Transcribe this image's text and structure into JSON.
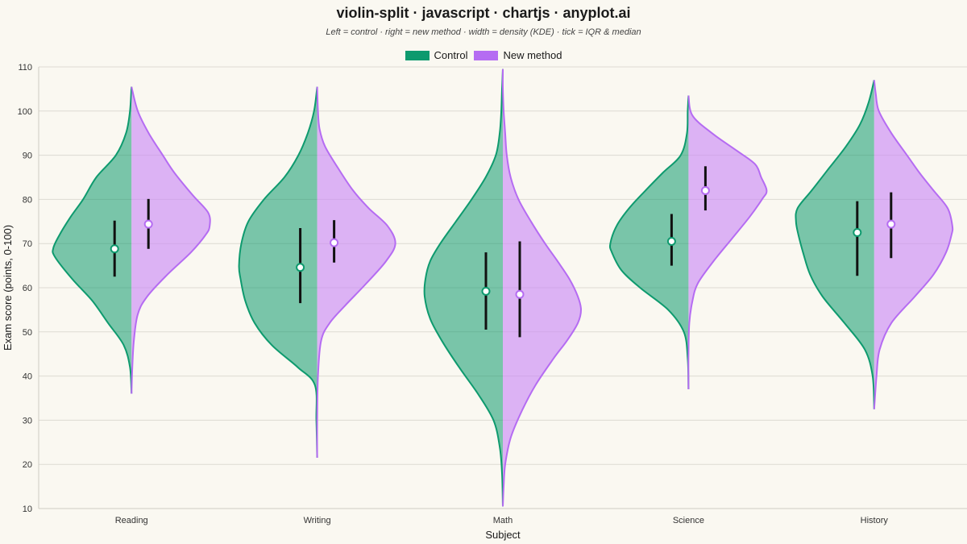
{
  "colors": {
    "control": "#0E9A6E",
    "control_fill": "rgba(14,154,110,0.55)",
    "new_method": "#B56CF2",
    "new_method_fill": "rgba(201,135,246,0.62)",
    "grid": "#DDDAD2",
    "box": "#111111"
  },
  "legend": {
    "control_label": "Control",
    "new_method_label": "New method"
  },
  "chart_data": {
    "type": "violin-split",
    "title": "violin-split · javascript · chartjs · anyplot.ai",
    "subtitle": "Left = control · right = new method · width = density (KDE) · tick = IQR & median",
    "xlabel": "Subject",
    "ylabel": "Exam score (points, 0-100)",
    "ylim": [
      10,
      110
    ],
    "yticks": [
      10,
      20,
      30,
      40,
      50,
      60,
      70,
      80,
      90,
      100,
      110
    ],
    "grid": true,
    "legend_position": "top-center",
    "categories": [
      "Reading",
      "Writing",
      "Math",
      "Science",
      "History"
    ],
    "series": [
      {
        "name": "Control",
        "side": "left",
        "violins": [
          {
            "min": 36,
            "max": 105.5,
            "q1": 62.5,
            "median": 68.8,
            "q3": 75.2,
            "density": [
              [
                36,
                0.0
              ],
              [
                42,
                0.02
              ],
              [
                47,
                0.1
              ],
              [
                52,
                0.3
              ],
              [
                57,
                0.5
              ],
              [
                62,
                0.76
              ],
              [
                67,
                0.98
              ],
              [
                69,
                1.0
              ],
              [
                72,
                0.92
              ],
              [
                76,
                0.78
              ],
              [
                80,
                0.62
              ],
              [
                85,
                0.45
              ],
              [
                90,
                0.2
              ],
              [
                95,
                0.07
              ],
              [
                100,
                0.02
              ],
              [
                105.5,
                0.0
              ]
            ]
          },
          {
            "min": 21.5,
            "max": 105.5,
            "q1": 56.5,
            "median": 64.6,
            "q3": 73.5,
            "density": [
              [
                21.5,
                0.0
              ],
              [
                30,
                0.01
              ],
              [
                38,
                0.03
              ],
              [
                42,
                0.25
              ],
              [
                47,
                0.58
              ],
              [
                52,
                0.8
              ],
              [
                57,
                0.92
              ],
              [
                62,
                0.98
              ],
              [
                65,
                1.0
              ],
              [
                70,
                0.97
              ],
              [
                75,
                0.88
              ],
              [
                80,
                0.68
              ],
              [
                85,
                0.42
              ],
              [
                90,
                0.24
              ],
              [
                95,
                0.12
              ],
              [
                100,
                0.04
              ],
              [
                105.5,
                0.0
              ]
            ]
          },
          {
            "min": 10.5,
            "max": 109.5,
            "q1": 50.5,
            "median": 59.2,
            "q3": 68.0,
            "density": [
              [
                10.5,
                0.0
              ],
              [
                18,
                0.01
              ],
              [
                24,
                0.04
              ],
              [
                30,
                0.12
              ],
              [
                36,
                0.32
              ],
              [
                42,
                0.56
              ],
              [
                48,
                0.78
              ],
              [
                53,
                0.93
              ],
              [
                58,
                1.0
              ],
              [
                62,
                0.99
              ],
              [
                66,
                0.93
              ],
              [
                70,
                0.8
              ],
              [
                75,
                0.6
              ],
              [
                80,
                0.4
              ],
              [
                85,
                0.22
              ],
              [
                90,
                0.09
              ],
              [
                95,
                0.04
              ],
              [
                100,
                0.02
              ],
              [
                105,
                0.01
              ],
              [
                109.5,
                0.0
              ]
            ]
          },
          {
            "min": 37,
            "max": 103.5,
            "q1": 65.0,
            "median": 70.5,
            "q3": 76.7,
            "density": [
              [
                37,
                0.0
              ],
              [
                44,
                0.01
              ],
              [
                50,
                0.06
              ],
              [
                55,
                0.26
              ],
              [
                60,
                0.62
              ],
              [
                64,
                0.86
              ],
              [
                68,
                0.98
              ],
              [
                70,
                1.0
              ],
              [
                74,
                0.92
              ],
              [
                78,
                0.76
              ],
              [
                82,
                0.55
              ],
              [
                86,
                0.33
              ],
              [
                90,
                0.1
              ],
              [
                95,
                0.02
              ],
              [
                100,
                0.01
              ],
              [
                103.5,
                0.0
              ]
            ]
          },
          {
            "min": 32.5,
            "max": 107,
            "q1": 62.7,
            "median": 72.5,
            "q3": 79.6,
            "density": [
              [
                32.5,
                0.0
              ],
              [
                40,
                0.02
              ],
              [
                46,
                0.12
              ],
              [
                52,
                0.38
              ],
              [
                58,
                0.66
              ],
              [
                63,
                0.82
              ],
              [
                68,
                0.91
              ],
              [
                72,
                0.97
              ],
              [
                75,
                1.0
              ],
              [
                78,
                0.98
              ],
              [
                82,
                0.8
              ],
              [
                87,
                0.58
              ],
              [
                92,
                0.36
              ],
              [
                97,
                0.18
              ],
              [
                102,
                0.07
              ],
              [
                107,
                0.0
              ]
            ]
          }
        ]
      },
      {
        "name": "New method",
        "side": "right",
        "violins": [
          {
            "min": 36,
            "max": 105.5,
            "q1": 68.8,
            "median": 74.4,
            "q3": 80.1,
            "density": [
              [
                36,
                0.0
              ],
              [
                42,
                0.01
              ],
              [
                48,
                0.03
              ],
              [
                54,
                0.08
              ],
              [
                58,
                0.2
              ],
              [
                63,
                0.46
              ],
              [
                68,
                0.76
              ],
              [
                72,
                0.95
              ],
              [
                74,
                1.0
              ],
              [
                77,
                0.98
              ],
              [
                81,
                0.78
              ],
              [
                86,
                0.55
              ],
              [
                90,
                0.4
              ],
              [
                95,
                0.22
              ],
              [
                100,
                0.08
              ],
              [
                105.5,
                0.0
              ]
            ]
          },
          {
            "min": 21.5,
            "max": 105.5,
            "q1": 65.7,
            "median": 70.2,
            "q3": 75.3,
            "density": [
              [
                21.5,
                0.0
              ],
              [
                30,
                0.0
              ],
              [
                40,
                0.01
              ],
              [
                48,
                0.05
              ],
              [
                52,
                0.16
              ],
              [
                56,
                0.36
              ],
              [
                61,
                0.63
              ],
              [
                66,
                0.88
              ],
              [
                70,
                1.0
              ],
              [
                74,
                0.9
              ],
              [
                78,
                0.66
              ],
              [
                82,
                0.46
              ],
              [
                87,
                0.27
              ],
              [
                92,
                0.1
              ],
              [
                96,
                0.03
              ],
              [
                100,
                0.01
              ],
              [
                105.5,
                0.0
              ]
            ]
          },
          {
            "min": 10.5,
            "max": 109.5,
            "q1": 48.8,
            "median": 58.5,
            "q3": 70.5,
            "density": [
              [
                10.5,
                0.0
              ],
              [
                15,
                0.01
              ],
              [
                20,
                0.03
              ],
              [
                26,
                0.1
              ],
              [
                32,
                0.24
              ],
              [
                38,
                0.42
              ],
              [
                44,
                0.65
              ],
              [
                48,
                0.82
              ],
              [
                52,
                0.96
              ],
              [
                55,
                1.0
              ],
              [
                58,
                0.96
              ],
              [
                62,
                0.85
              ],
              [
                66,
                0.7
              ],
              [
                70,
                0.54
              ],
              [
                75,
                0.36
              ],
              [
                80,
                0.2
              ],
              [
                85,
                0.1
              ],
              [
                90,
                0.05
              ],
              [
                95,
                0.03
              ],
              [
                100,
                0.01
              ],
              [
                105,
                0.0
              ],
              [
                109.5,
                0.0
              ]
            ]
          },
          {
            "min": 37,
            "max": 103.5,
            "q1": 77.5,
            "median": 82.0,
            "q3": 87.5,
            "density": [
              [
                37,
                0.0
              ],
              [
                45,
                0.0
              ],
              [
                52,
                0.01
              ],
              [
                57,
                0.05
              ],
              [
                61,
                0.12
              ],
              [
                66,
                0.32
              ],
              [
                71,
                0.55
              ],
              [
                76,
                0.78
              ],
              [
                80,
                0.94
              ],
              [
                82,
                1.0
              ],
              [
                85,
                0.93
              ],
              [
                88,
                0.85
              ],
              [
                91,
                0.62
              ],
              [
                95,
                0.3
              ],
              [
                99,
                0.05
              ],
              [
                103.5,
                0.0
              ]
            ]
          },
          {
            "min": 32.5,
            "max": 107,
            "q1": 66.7,
            "median": 74.4,
            "q3": 81.6,
            "density": [
              [
                32.5,
                0.0
              ],
              [
                40,
                0.03
              ],
              [
                46,
                0.07
              ],
              [
                52,
                0.22
              ],
              [
                58,
                0.52
              ],
              [
                63,
                0.76
              ],
              [
                68,
                0.92
              ],
              [
                72,
                0.99
              ],
              [
                74,
                1.0
              ],
              [
                78,
                0.94
              ],
              [
                82,
                0.76
              ],
              [
                86,
                0.58
              ],
              [
                90,
                0.42
              ],
              [
                95,
                0.22
              ],
              [
                100,
                0.06
              ],
              [
                104,
                0.02
              ],
              [
                107,
                0.0
              ]
            ]
          }
        ]
      }
    ]
  }
}
